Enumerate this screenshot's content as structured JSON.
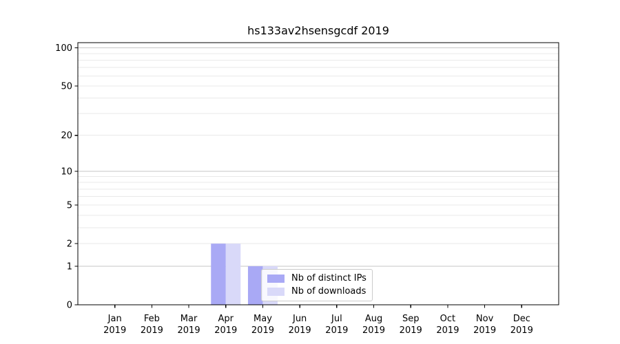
{
  "chart_data": {
    "type": "bar",
    "title": "hs133av2hsensgcdf 2019",
    "categories": [
      "Jan",
      "Feb",
      "Mar",
      "Apr",
      "May",
      "Jun",
      "Jul",
      "Aug",
      "Sep",
      "Oct",
      "Nov",
      "Dec"
    ],
    "category_year": "2019",
    "series": [
      {
        "name": "Nb of distinct IPs",
        "color": "#a9a9f5",
        "values": [
          0,
          0,
          0,
          2,
          1,
          0,
          0,
          0,
          0,
          0,
          0,
          0
        ]
      },
      {
        "name": "Nb of downloads",
        "color": "#d9d9f9",
        "values": [
          0,
          0,
          0,
          2,
          1,
          0,
          0,
          0,
          0,
          0,
          0,
          0
        ]
      }
    ],
    "yscale": "log1p",
    "ylim": [
      0,
      110
    ],
    "y_ticks": [
      0,
      1,
      2,
      5,
      10,
      20,
      50,
      100
    ],
    "y_major_gridlines": [
      1,
      10,
      100
    ],
    "grid": true,
    "legend": {
      "labels": [
        "Nb of distinct IPs",
        "Nb of downloads"
      ],
      "position": "lower-center"
    },
    "colors": {
      "major_grid": "#c6c6c6",
      "minor_grid": "#e9e9e9",
      "spine": "#000000",
      "tick_text": "#000000"
    }
  }
}
